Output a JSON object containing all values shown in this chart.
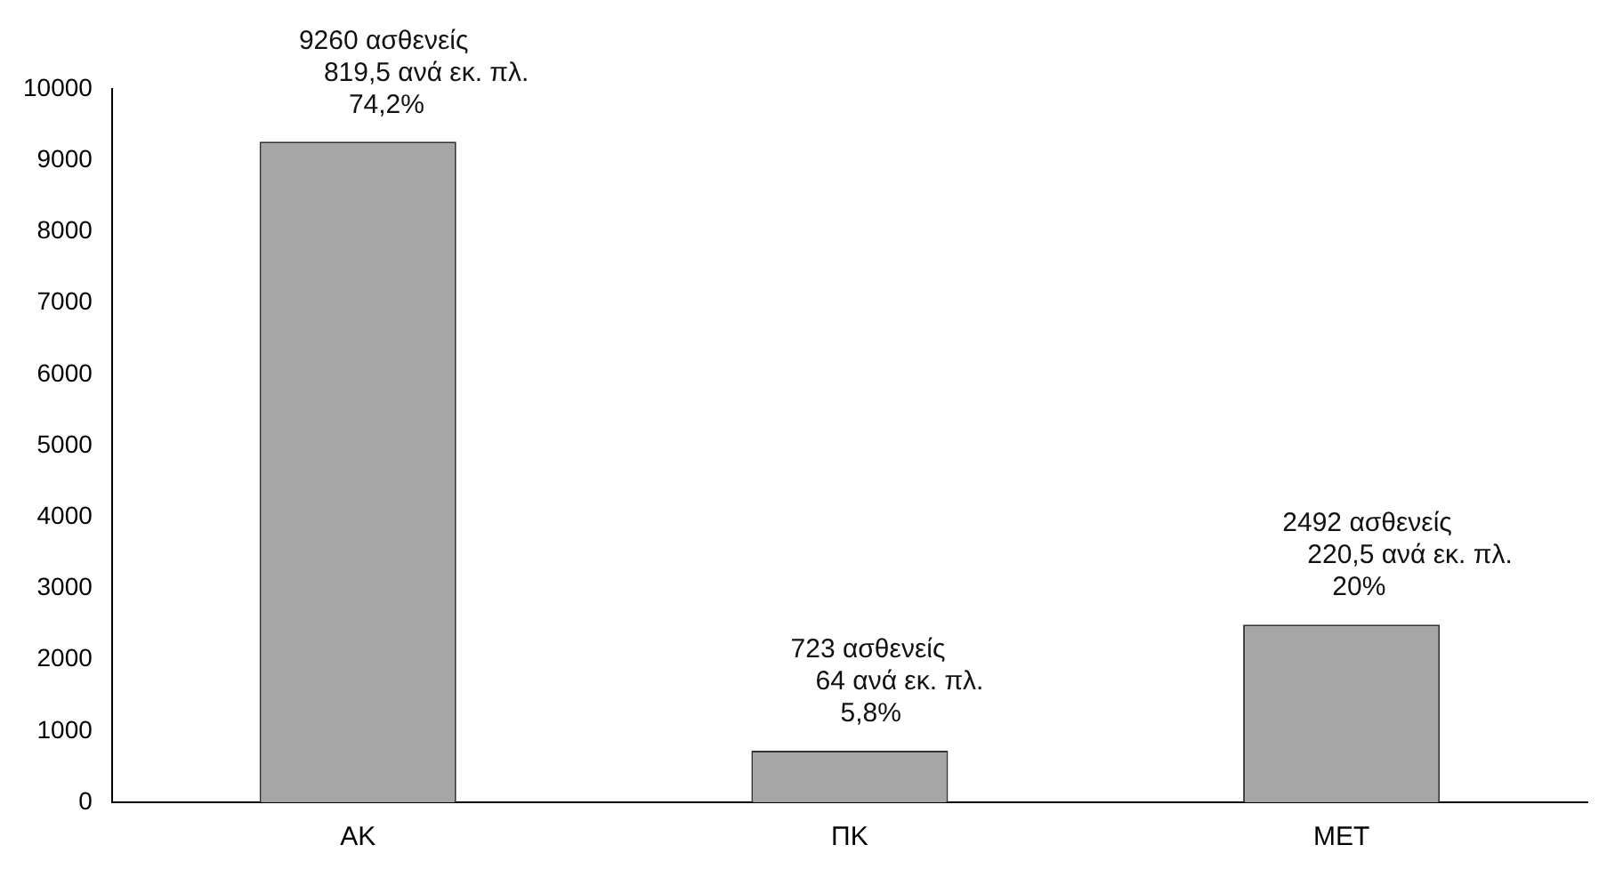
{
  "chart_data": {
    "type": "bar",
    "categories": [
      "ΑΚ",
      "ΠΚ",
      "ΜΕΤ"
    ],
    "values": [
      9260,
      723,
      2492
    ],
    "color": "#a6a6a6",
    "ylim": [
      0,
      10000
    ],
    "yticks": [
      0,
      1000,
      2000,
      3000,
      4000,
      5000,
      6000,
      7000,
      8000,
      9000,
      10000
    ],
    "grid": false,
    "annotations": [
      {
        "text": "9260 ασθενείς\n819,5 ανά εκ. πλ.\n74,2%",
        "x": "ΑΚ",
        "y": 9260
      },
      {
        "text": "723 ασθενείς\n64 ανά εκ. πλ.\n5,8%",
        "x": "ΠΚ",
        "y": 723
      },
      {
        "text": "2492 ασθενείς\n220,5 ανά εκ. πλ.\n20%",
        "x": "ΜΕΤ",
        "y": 2492
      }
    ]
  }
}
